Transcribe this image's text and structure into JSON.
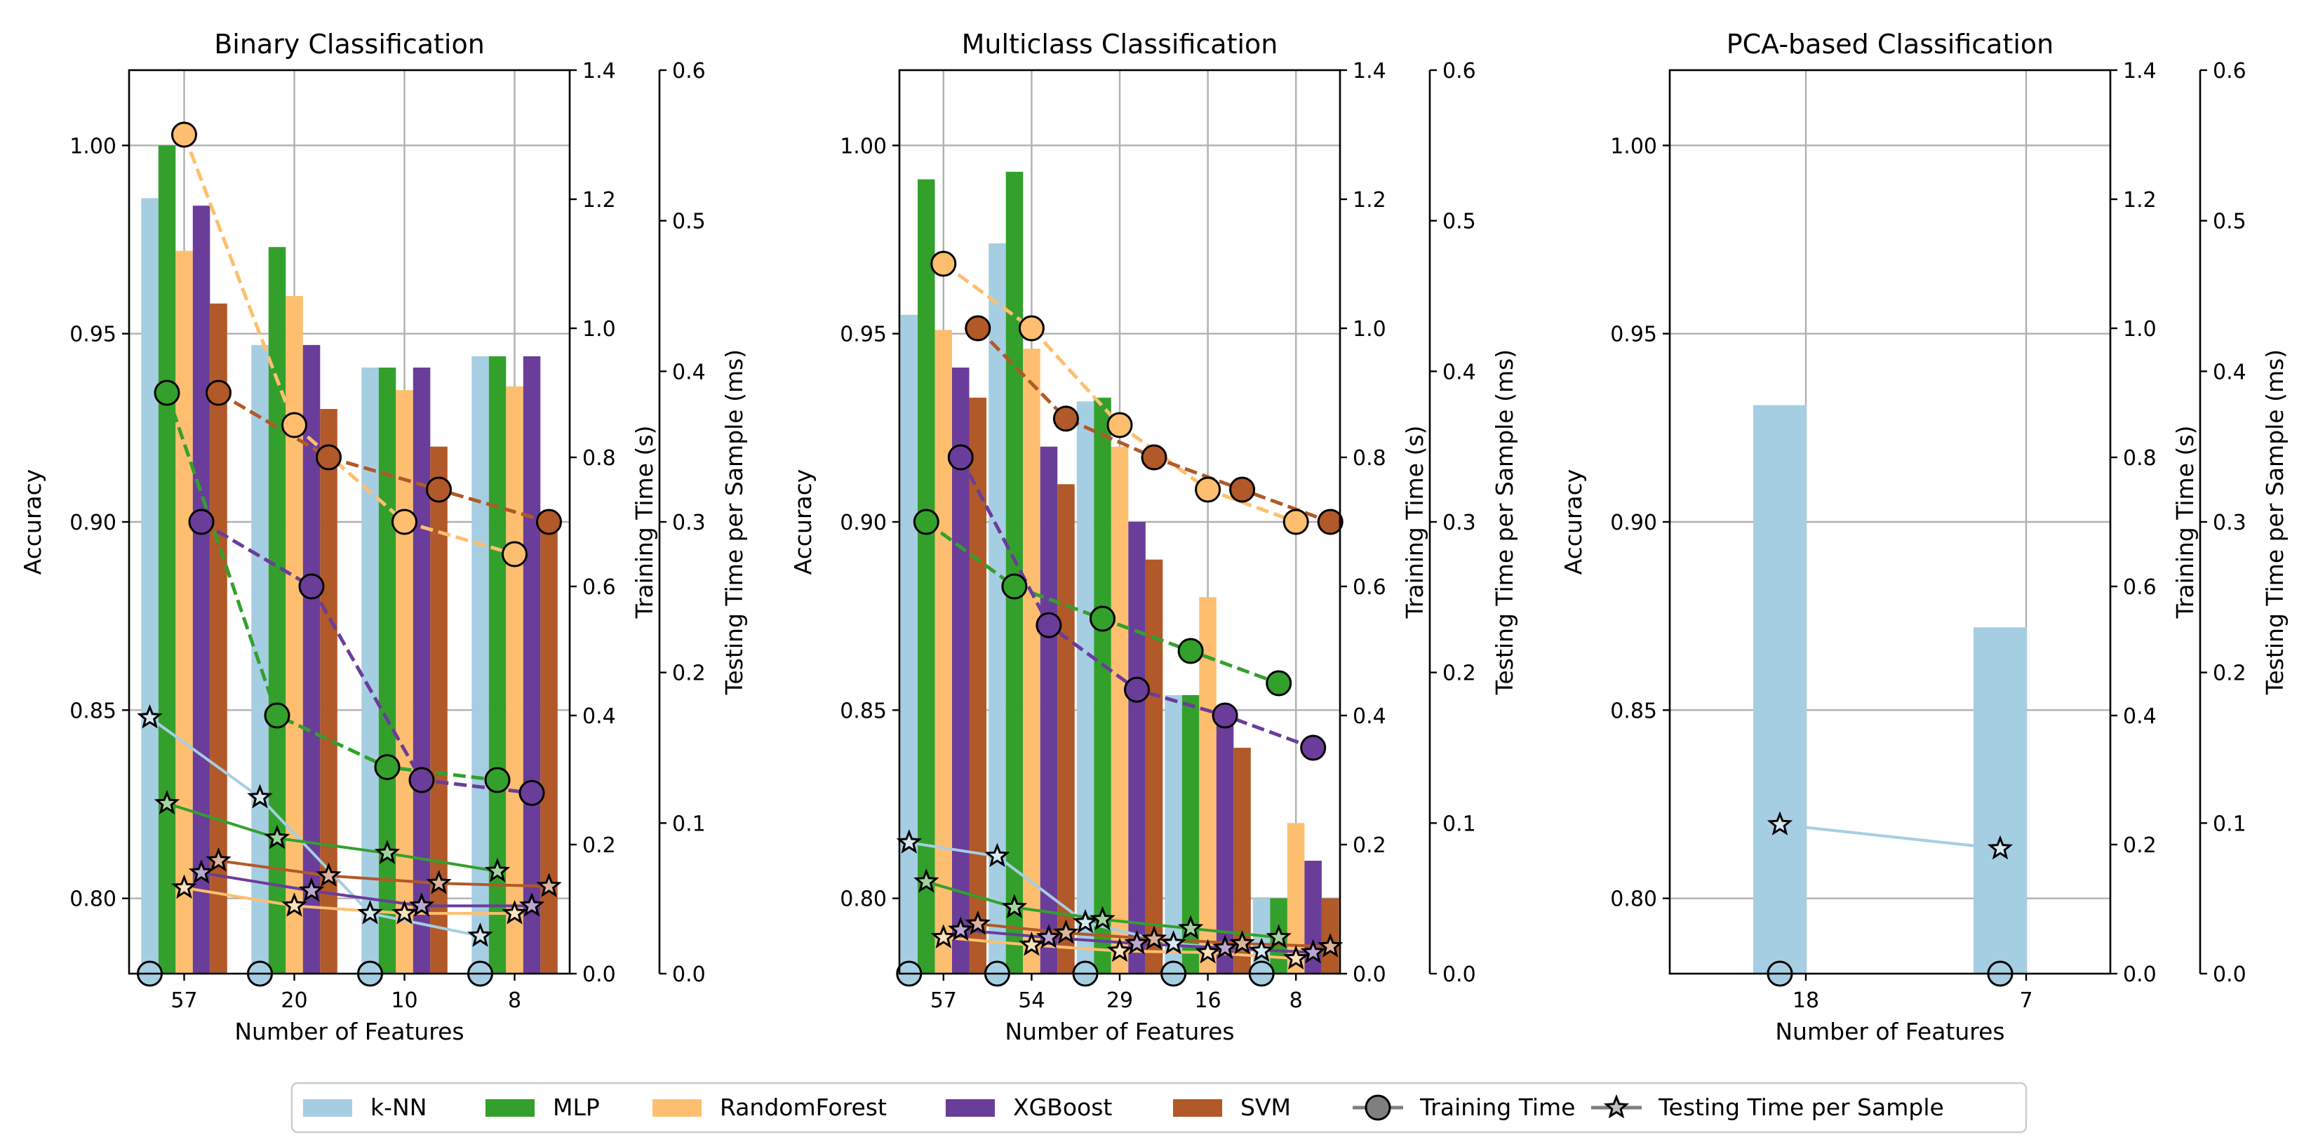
{
  "chart_data": {
    "type": "bar",
    "models": [
      "k-NN",
      "MLP",
      "RandomForest",
      "XGBoost",
      "SVM"
    ],
    "colors": {
      "k-NN": "#a6cee3",
      "MLP": "#33a02c",
      "RandomForest": "#fdbf6f",
      "XGBoost": "#6a3d9a",
      "SVM": "#b15928",
      "knn_test_line": "#a6cee3"
    },
    "legend": {
      "position": "bottom-center",
      "entries": [
        "k-NN",
        "MLP",
        "RandomForest",
        "XGBoost",
        "SVM",
        "Training Time",
        "Testing Time per Sample"
      ]
    },
    "panels": [
      {
        "title": "Binary Classification",
        "xlabel": "Number of Features",
        "ylabel": "Accuracy",
        "ylabel_right1": "Training Time (s)",
        "ylabel_right2": "Testing Time per Sample (ms)",
        "categories": [
          "57",
          "20",
          "10",
          "8"
        ],
        "ylim": [
          0.78,
          1.02
        ],
        "yticks": [
          0.8,
          0.85,
          0.9,
          0.95,
          1.0
        ],
        "y2lim": [
          0,
          1.4
        ],
        "y2ticks": [
          0.0,
          0.2,
          0.4,
          0.6,
          0.8,
          1.0,
          1.2,
          1.4
        ],
        "y3lim": [
          0,
          0.6
        ],
        "y3ticks": [
          0.0,
          0.1,
          0.2,
          0.3,
          0.4,
          0.5,
          0.6
        ],
        "grid": true,
        "accuracy": {
          "k-NN": [
            0.986,
            0.947,
            0.941,
            0.944
          ],
          "MLP": [
            1.0,
            0.973,
            0.941,
            0.944
          ],
          "RandomForest": [
            0.972,
            0.96,
            0.935,
            0.936
          ],
          "XGBoost": [
            0.984,
            0.947,
            0.941,
            0.944
          ],
          "SVM": [
            0.958,
            0.93,
            0.92,
            0.9
          ]
        },
        "training_time_s": {
          "k-NN": [
            0.0,
            0.0,
            0.0,
            0.0
          ],
          "MLP": [
            0.9,
            0.4,
            0.32,
            0.3
          ],
          "RandomForest": [
            1.3,
            0.85,
            0.7,
            0.65
          ],
          "XGBoost": [
            0.7,
            0.6,
            0.3,
            0.28
          ],
          "SVM": [
            0.9,
            0.8,
            0.75,
            0.7
          ]
        },
        "testing_time_ms": {
          "k-NN": [
            0.17,
            0.117,
            0.04,
            0.025
          ],
          "MLP": [
            0.113,
            0.09,
            0.08,
            0.068
          ],
          "RandomForest": [
            0.057,
            0.045,
            0.04,
            0.04
          ],
          "XGBoost": [
            0.067,
            0.055,
            0.045,
            0.045
          ],
          "SVM": [
            0.075,
            0.065,
            0.06,
            0.058
          ]
        }
      },
      {
        "title": "Multiclass Classification",
        "xlabel": "Number of Features",
        "ylabel": "Accuracy",
        "ylabel_right1": "Training Time (s)",
        "ylabel_right2": "Testing Time per Sample (ms)",
        "categories": [
          "57",
          "54",
          "29",
          "16",
          "8"
        ],
        "ylim": [
          0.78,
          1.02
        ],
        "yticks": [
          0.8,
          0.85,
          0.9,
          0.95,
          1.0
        ],
        "y2lim": [
          0,
          1.4
        ],
        "y2ticks": [
          0.0,
          0.2,
          0.4,
          0.6,
          0.8,
          1.0,
          1.2,
          1.4
        ],
        "y3lim": [
          0,
          0.6
        ],
        "y3ticks": [
          0.0,
          0.1,
          0.2,
          0.3,
          0.4,
          0.5,
          0.6
        ],
        "grid": true,
        "accuracy": {
          "k-NN": [
            0.955,
            0.974,
            0.932,
            0.854,
            0.8
          ],
          "MLP": [
            0.991,
            0.993,
            0.933,
            0.854,
            0.8
          ],
          "RandomForest": [
            0.951,
            0.946,
            0.92,
            0.88,
            0.82
          ],
          "XGBoost": [
            0.941,
            0.92,
            0.9,
            0.85,
            0.81
          ],
          "SVM": [
            0.933,
            0.91,
            0.89,
            0.84,
            0.8
          ]
        },
        "training_time_s": {
          "k-NN": [
            0.0,
            0.0,
            0.0,
            0.0,
            0.0
          ],
          "MLP": [
            0.7,
            0.6,
            0.55,
            0.5,
            0.45
          ],
          "RandomForest": [
            1.1,
            1.0,
            0.85,
            0.75,
            0.7
          ],
          "XGBoost": [
            0.8,
            0.54,
            0.44,
            0.4,
            0.35
          ],
          "SVM": [
            1.0,
            0.86,
            0.8,
            0.75,
            0.7
          ]
        },
        "testing_time_ms": {
          "k-NN": [
            0.087,
            0.078,
            0.034,
            0.02,
            0.015
          ],
          "MLP": [
            0.061,
            0.044,
            0.036,
            0.03,
            0.024
          ],
          "RandomForest": [
            0.024,
            0.019,
            0.015,
            0.014,
            0.01
          ],
          "XGBoost": [
            0.029,
            0.024,
            0.02,
            0.017,
            0.014
          ],
          "SVM": [
            0.033,
            0.027,
            0.023,
            0.02,
            0.018
          ]
        }
      },
      {
        "title": "PCA-based Classification",
        "xlabel": "Number of Features",
        "ylabel": "Accuracy",
        "ylabel_right1": "Training Time (s)",
        "ylabel_right2": "Testing Time per Sample (ms)",
        "categories": [
          "18",
          "7"
        ],
        "ylim": [
          0.78,
          1.02
        ],
        "yticks": [
          0.8,
          0.85,
          0.9,
          0.95,
          1.0
        ],
        "y2lim": [
          0,
          1.4
        ],
        "y2ticks": [
          0.0,
          0.2,
          0.4,
          0.6,
          0.8,
          1.0,
          1.2,
          1.4
        ],
        "y3lim": [
          0,
          0.6
        ],
        "y3ticks": [
          0.0,
          0.1,
          0.2,
          0.3,
          0.4,
          0.5,
          0.6
        ],
        "grid": true,
        "accuracy": {
          "k-NN": [
            0.931,
            0.872
          ]
        },
        "training_time_s": {
          "k-NN": [
            0.0,
            0.0
          ]
        },
        "testing_time_ms": {
          "k-NN": [
            0.099,
            0.083
          ]
        }
      }
    ]
  }
}
